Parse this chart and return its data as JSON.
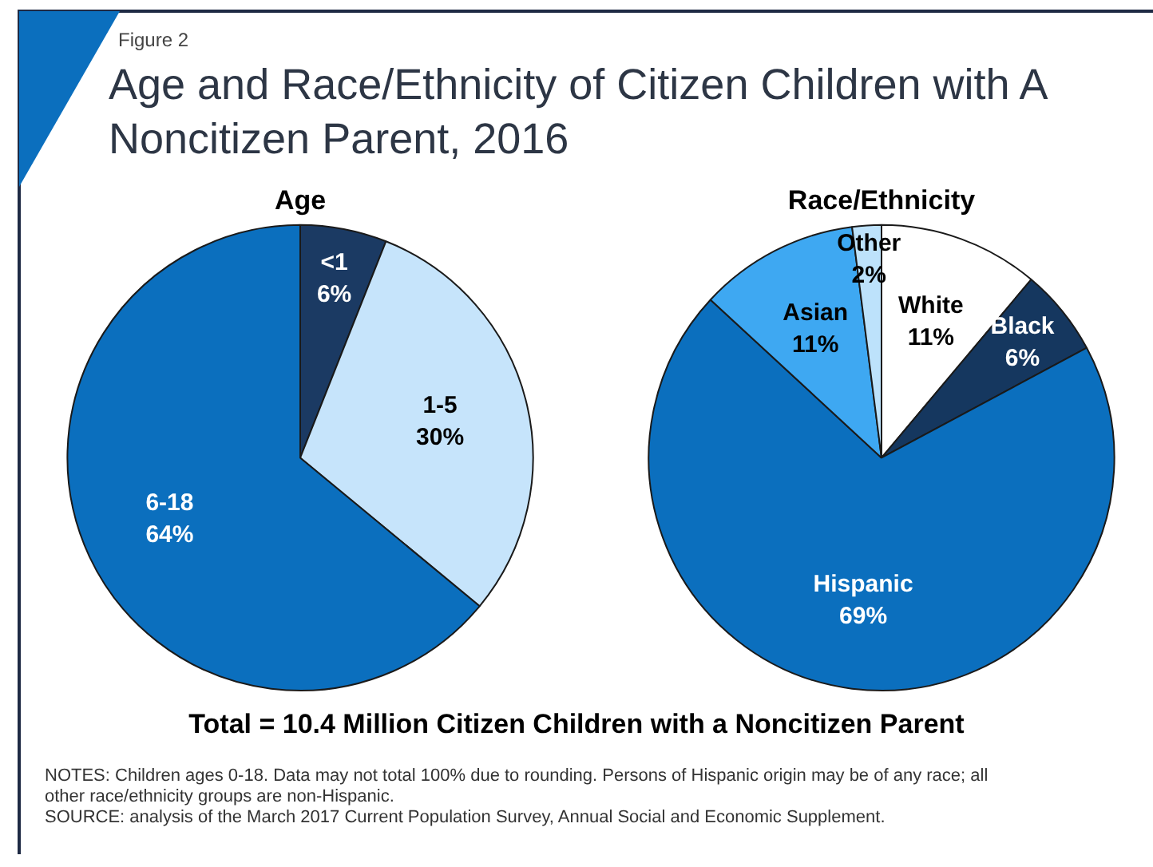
{
  "chart_data": [
    {
      "type": "other",
      "title": "Age and Race/Ethnicity of Citizen Children with A Noncitizen Parent, 2016",
      "annotations": [
        "Figure 2",
        "Total = 10.4 Million Citizen Children with a Noncitizen Parent",
        "NOTES: Children ages 0-18. Data may not total 100% due to rounding. Persons of Hispanic origin may be of any race; all other race/ethnicity groups are non-Hispanic.",
        "SOURCE: analysis of the March 2017 Current Population Survey, Annual Social and Economic Supplement."
      ]
    },
    {
      "type": "pie",
      "title": "Age",
      "categories": [
        "<1",
        "1-5",
        "6-18"
      ],
      "values": [
        6,
        30,
        64
      ],
      "colors": [
        "#1b3a63",
        "#c6e4fb",
        "#0b6fbe"
      ],
      "value_labels": [
        "6%",
        "30%",
        "64%"
      ]
    },
    {
      "type": "pie",
      "title": "Race/Ethnicity",
      "categories": [
        "White",
        "Black",
        "Hispanic",
        "Asian",
        "Other"
      ],
      "values": [
        11,
        6,
        69,
        11,
        2
      ],
      "colors": [
        "#ffffff",
        "#15375f",
        "#0b6fbe",
        "#3ea8f2",
        "#bde2fb"
      ],
      "value_labels": [
        "11%",
        "6%",
        "69%",
        "11%",
        "2%"
      ]
    }
  ]
}
